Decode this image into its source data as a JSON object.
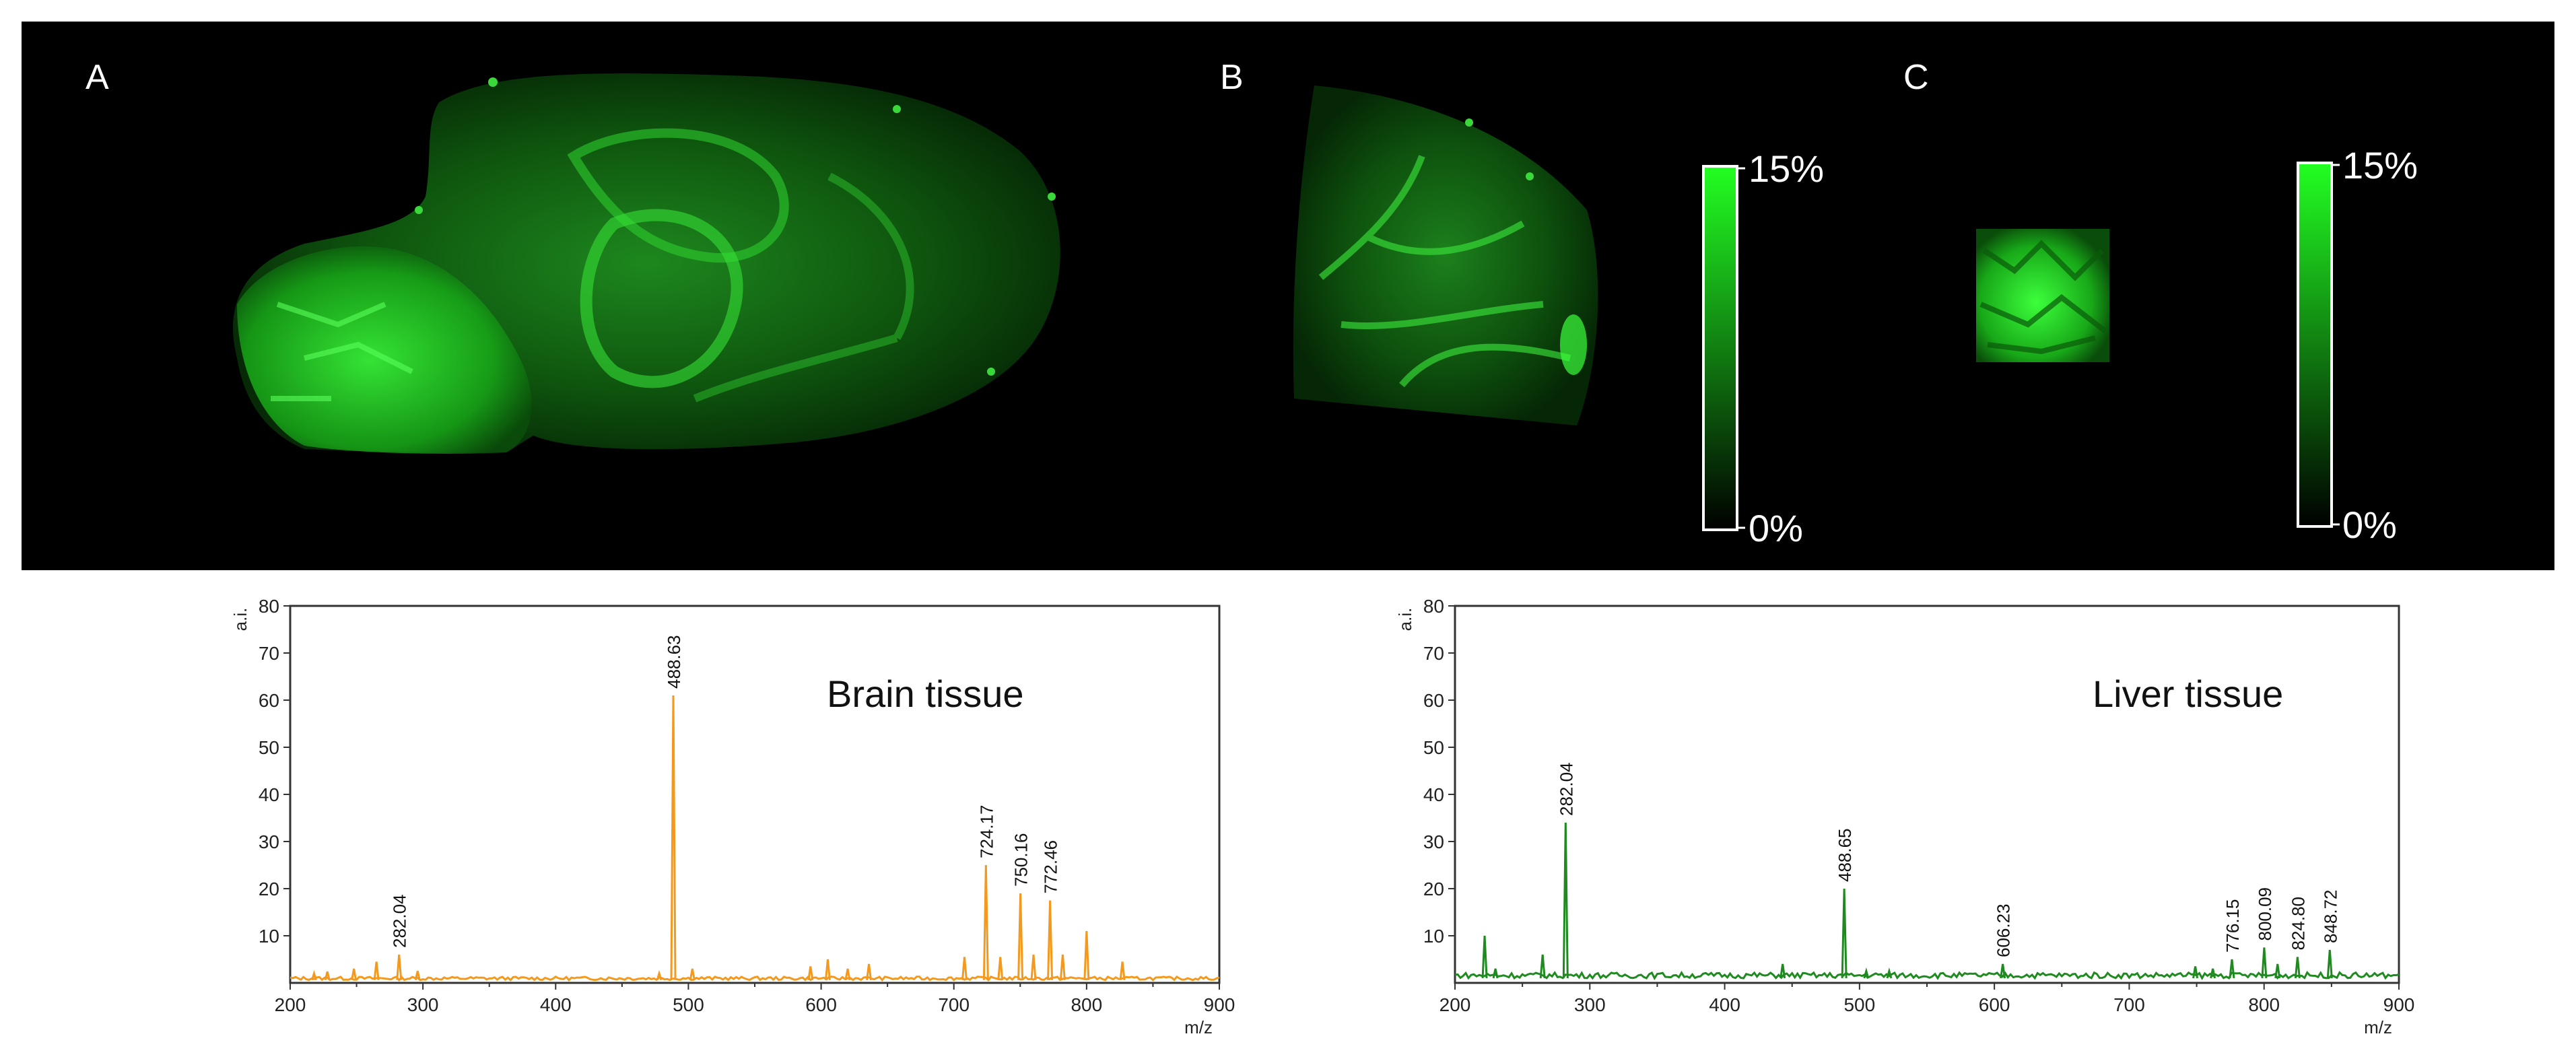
{
  "imaging": {
    "panels": [
      {
        "letter": "A",
        "tissue": "brain sagittal section"
      },
      {
        "letter": "B",
        "tissue": "brain fragment"
      },
      {
        "letter": "C",
        "tissue": "liver"
      }
    ],
    "colorbars": [
      {
        "max_label": "15%",
        "min_label": "0%"
      },
      {
        "max_label": "15%",
        "min_label": "0%"
      }
    ],
    "colors": {
      "background": "#000000",
      "signal": "#22ff22"
    }
  },
  "chart_data": [
    {
      "type": "line",
      "title": "Brain tissue",
      "xlabel": "m/z",
      "ylabel": "a.i.",
      "xlim": [
        200,
        900
      ],
      "ylim": [
        0,
        80
      ],
      "xticks": [
        "200",
        "300",
        "400",
        "500",
        "600",
        "700",
        "800",
        "900"
      ],
      "yticks": [
        "10",
        "20",
        "30",
        "40",
        "50",
        "60",
        "70",
        "80"
      ],
      "color": "#f39a1e",
      "baseline": 0.6,
      "peaks": [
        {
          "x": 218,
          "y": 2.0
        },
        {
          "x": 228,
          "y": 2.4
        },
        {
          "x": 248,
          "y": 3.0
        },
        {
          "x": 265,
          "y": 4.5
        },
        {
          "x": 282.04,
          "y": 6.0
        },
        {
          "x": 296,
          "y": 2.5
        },
        {
          "x": 478,
          "y": 2.0
        },
        {
          "x": 488.63,
          "y": 61.0
        },
        {
          "x": 503,
          "y": 3.0
        },
        {
          "x": 592,
          "y": 3.5
        },
        {
          "x": 605,
          "y": 5.0
        },
        {
          "x": 620,
          "y": 3.0
        },
        {
          "x": 636,
          "y": 4.0
        },
        {
          "x": 708,
          "y": 5.5
        },
        {
          "x": 724.17,
          "y": 25.0
        },
        {
          "x": 735,
          "y": 5.5
        },
        {
          "x": 750.16,
          "y": 19.0
        },
        {
          "x": 760,
          "y": 6.0
        },
        {
          "x": 772.46,
          "y": 17.5
        },
        {
          "x": 782,
          "y": 6.0
        },
        {
          "x": 800,
          "y": 11.0
        },
        {
          "x": 827,
          "y": 4.5
        }
      ],
      "labels": [
        {
          "text": "282.04",
          "x": 282.04,
          "y": 6.0
        },
        {
          "text": "488.63",
          "x": 488.63,
          "y": 61.0
        },
        {
          "text": "724.17",
          "x": 724.17,
          "y": 25.0
        },
        {
          "text": "750.16",
          "x": 750.16,
          "y": 19.0
        },
        {
          "text": "772.46",
          "x": 772.46,
          "y": 17.5
        }
      ]
    },
    {
      "type": "line",
      "title": "Liver tissue",
      "xlabel": "m/z",
      "ylabel": "a.i.",
      "xlim": [
        200,
        900
      ],
      "ylim": [
        0,
        80
      ],
      "xticks": [
        "200",
        "300",
        "400",
        "500",
        "600",
        "700",
        "800",
        "900"
      ],
      "yticks": [
        "10",
        "20",
        "30",
        "40",
        "50",
        "60",
        "70",
        "80"
      ],
      "color": "#1f8a1f",
      "baseline": 1.0,
      "peaks": [
        {
          "x": 222,
          "y": 10.0
        },
        {
          "x": 230,
          "y": 3.0
        },
        {
          "x": 265,
          "y": 6.0
        },
        {
          "x": 282.04,
          "y": 34.0
        },
        {
          "x": 443,
          "y": 4.0
        },
        {
          "x": 488.65,
          "y": 20.0
        },
        {
          "x": 505,
          "y": 2.5
        },
        {
          "x": 522,
          "y": 2.5
        },
        {
          "x": 606.23,
          "y": 4.0
        },
        {
          "x": 749,
          "y": 3.5
        },
        {
          "x": 762,
          "y": 3.0
        },
        {
          "x": 776.15,
          "y": 5.0
        },
        {
          "x": 800.09,
          "y": 7.5
        },
        {
          "x": 810,
          "y": 4.0
        },
        {
          "x": 824.8,
          "y": 5.5
        },
        {
          "x": 848.72,
          "y": 7.0
        }
      ],
      "labels": [
        {
          "text": "282.04",
          "x": 282.04,
          "y": 34.0
        },
        {
          "text": "488.65",
          "x": 488.65,
          "y": 20.0
        },
        {
          "text": "606.23",
          "x": 606.23,
          "y": 4.0
        },
        {
          "text": "776.15",
          "x": 776.15,
          "y": 5.0
        },
        {
          "text": "800.09",
          "x": 800.09,
          "y": 7.5
        },
        {
          "text": "824.80",
          "x": 824.8,
          "y": 5.5
        },
        {
          "text": "848.72",
          "x": 848.72,
          "y": 7.0
        }
      ]
    }
  ]
}
